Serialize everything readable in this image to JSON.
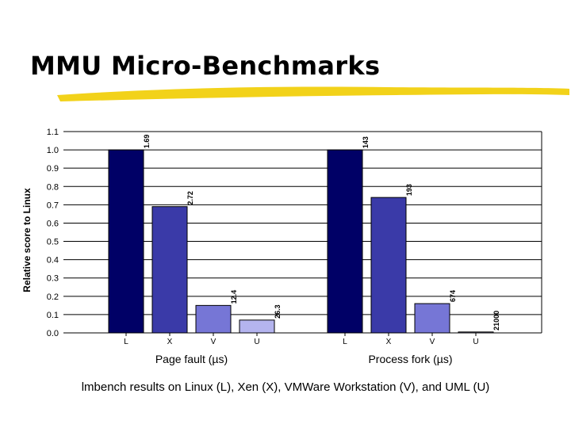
{
  "slide": {
    "title": "MMU Micro-Benchmarks",
    "caption": "lmbench results on Linux (L), Xen (X), VMWare Workstation (V), and UML (U)",
    "underline_color": "#f2d21a"
  },
  "chart_data": {
    "type": "bar",
    "ylabel": "Relative score to Linux",
    "ylim": [
      0,
      1.1
    ],
    "yticks": [
      "0.0",
      "0.1",
      "0.2",
      "0.3",
      "0.4",
      "0.5",
      "0.6",
      "0.7",
      "0.8",
      "0.9",
      "1.0",
      "1.1"
    ],
    "grid": true,
    "groups": [
      {
        "label": "Page fault (µs)",
        "categories": [
          "L",
          "X",
          "V",
          "U"
        ],
        "values": [
          1.0,
          0.69,
          0.15,
          0.07
        ],
        "data_labels": [
          "1.69",
          "2.72",
          "12.4",
          "26.3"
        ]
      },
      {
        "label": "Process fork (µs)",
        "categories": [
          "L",
          "X",
          "V",
          "U"
        ],
        "values": [
          1.0,
          0.74,
          0.16,
          0.005
        ],
        "data_labels": [
          "143",
          "193",
          "674",
          "21000"
        ]
      }
    ],
    "colors": {
      "L": "#000066",
      "X": "#3a3aa8",
      "V": "#7676d6",
      "U": "#b4b4ee"
    }
  }
}
